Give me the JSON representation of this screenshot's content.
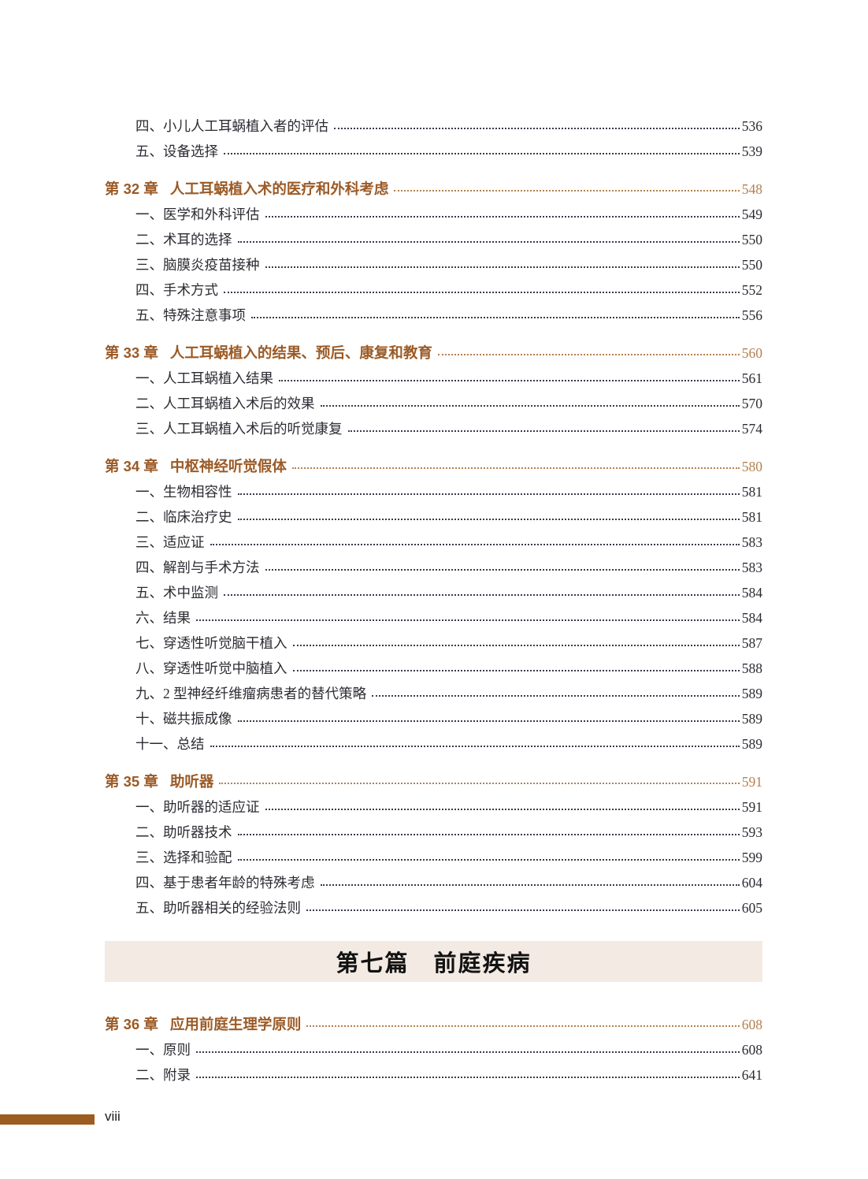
{
  "page": {
    "footer": {
      "page_number": "viii"
    }
  },
  "colors": {
    "page_bg": "#ffffff",
    "chapter_text": "#9b5a26",
    "chapter_page": "#b5804d",
    "chapter_dots": "#b5804d",
    "item_text": "#2b2b33",
    "item_dots": "#3a3a4c",
    "part_band_bg": "#f3eae3",
    "part_title_text": "#121212",
    "footer_bar": "#9d5c20",
    "footer_text": "#171a20"
  },
  "toc": {
    "entries": [
      {
        "type": "sub",
        "label": "四、小儿人工耳蜗植入者的评估",
        "page": "536"
      },
      {
        "type": "sub",
        "label": "五、设备选择",
        "page": "539"
      },
      {
        "type": "chapter",
        "num": "第 32 章",
        "title": "人工耳蜗植入术的医疗和外科考虑",
        "page": "548"
      },
      {
        "type": "sub",
        "label": "一、医学和外科评估",
        "page": "549"
      },
      {
        "type": "sub",
        "label": "二、术耳的选择",
        "page": "550"
      },
      {
        "type": "sub",
        "label": "三、脑膜炎疫苗接种",
        "page": "550"
      },
      {
        "type": "sub",
        "label": "四、手术方式",
        "page": "552"
      },
      {
        "type": "sub",
        "label": "五、特殊注意事项",
        "page": "556"
      },
      {
        "type": "chapter",
        "num": "第 33 章",
        "title": "人工耳蜗植入的结果、预后、康复和教育",
        "page": "560"
      },
      {
        "type": "sub",
        "label": "一、人工耳蜗植入结果",
        "page": "561"
      },
      {
        "type": "sub",
        "label": "二、人工耳蜗植入术后的效果",
        "page": "570"
      },
      {
        "type": "sub",
        "label": "三、人工耳蜗植入术后的听觉康复",
        "page": "574"
      },
      {
        "type": "chapter",
        "num": "第 34 章",
        "title": "中枢神经听觉假体",
        "page": "580"
      },
      {
        "type": "sub",
        "label": "一、生物相容性",
        "page": "581"
      },
      {
        "type": "sub",
        "label": "二、临床治疗史",
        "page": "581"
      },
      {
        "type": "sub",
        "label": "三、适应证",
        "page": "583"
      },
      {
        "type": "sub",
        "label": "四、解剖与手术方法",
        "page": "583"
      },
      {
        "type": "sub",
        "label": "五、术中监测",
        "page": "584"
      },
      {
        "type": "sub",
        "label": "六、结果",
        "page": "584"
      },
      {
        "type": "sub",
        "label": "七、穿透性听觉脑干植入",
        "page": "587"
      },
      {
        "type": "sub",
        "label": "八、穿透性听觉中脑植入",
        "page": "588"
      },
      {
        "type": "sub",
        "label": "九、2 型神经纤维瘤病患者的替代策略",
        "page": "589"
      },
      {
        "type": "sub",
        "label": "十、磁共振成像",
        "page": "589"
      },
      {
        "type": "sub",
        "label": "十一、总结",
        "page": "589"
      },
      {
        "type": "chapter",
        "num": "第 35 章",
        "title": "助听器",
        "page": "591"
      },
      {
        "type": "sub",
        "label": "一、助听器的适应证",
        "page": "591"
      },
      {
        "type": "sub",
        "label": "二、助听器技术",
        "page": "593"
      },
      {
        "type": "sub",
        "label": "三、选择和验配",
        "page": "599"
      },
      {
        "type": "sub",
        "label": "四、基于患者年龄的特殊考虑",
        "page": "604"
      },
      {
        "type": "sub",
        "label": "五、助听器相关的经验法则",
        "page": "605"
      },
      {
        "type": "part",
        "title": "第七篇　前庭疾病"
      },
      {
        "type": "chapter",
        "num": "第 36 章",
        "title": "应用前庭生理学原则",
        "page": "608"
      },
      {
        "type": "sub",
        "label": "一、原则",
        "page": "608"
      },
      {
        "type": "sub",
        "label": "二、附录",
        "page": "641"
      }
    ]
  }
}
